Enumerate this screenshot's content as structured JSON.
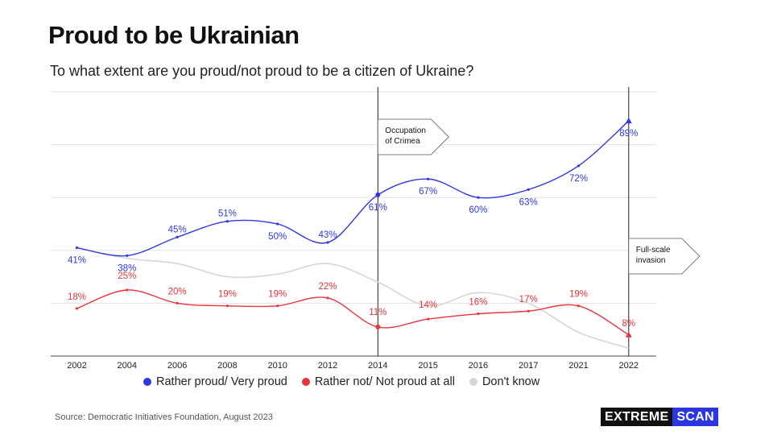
{
  "title": "Proud to be Ukrainian",
  "subtitle": "To what extent are you proud/not proud to be a citizen of Ukraine?",
  "source": "Source: Democratic Initiatives Foundation, August 2023",
  "logo": {
    "part1": "EXTREME",
    "part2": "SCAN"
  },
  "colors": {
    "proud": "#2f37e3",
    "not_proud": "#e8343c",
    "dont_know": "#d6d6d6",
    "logo_accent": "#2a36e0"
  },
  "chart_data": {
    "type": "line",
    "categories": [
      "2002",
      "2004",
      "2006",
      "2008",
      "2010",
      "2012",
      "2014",
      "2015",
      "2016",
      "2017",
      "2021",
      "2022"
    ],
    "series": [
      {
        "name": "Rather proud/ Very proud",
        "values": [
          41,
          38,
          45,
          51,
          50,
          43,
          61,
          67,
          60,
          63,
          72,
          89
        ],
        "labels": [
          "41%",
          "38%",
          "45%",
          "51%",
          "50%",
          "43%",
          "61%",
          "67%",
          "60%",
          "63%",
          "72%",
          "89%"
        ]
      },
      {
        "name": "Rather not/ Not proud at all",
        "values": [
          18,
          25,
          20,
          19,
          19,
          22,
          11,
          14,
          16,
          17,
          19,
          8
        ],
        "labels": [
          "18%",
          "25%",
          "20%",
          "19%",
          "19%",
          "22%",
          "11%",
          "14%",
          "16%",
          "17%",
          "19%",
          "8%"
        ]
      },
      {
        "name": "Don't know",
        "values": [
          41,
          37,
          35,
          30,
          31,
          35,
          28,
          19,
          24,
          20,
          9,
          3
        ]
      }
    ],
    "annotations": [
      {
        "category": "2014",
        "text": [
          "Occupation",
          "of Crimea"
        ]
      },
      {
        "category": "2022",
        "text": [
          "Full-scale",
          "invasion"
        ]
      }
    ],
    "ylim": [
      0,
      100
    ],
    "grid": true,
    "legend": "bottom"
  }
}
